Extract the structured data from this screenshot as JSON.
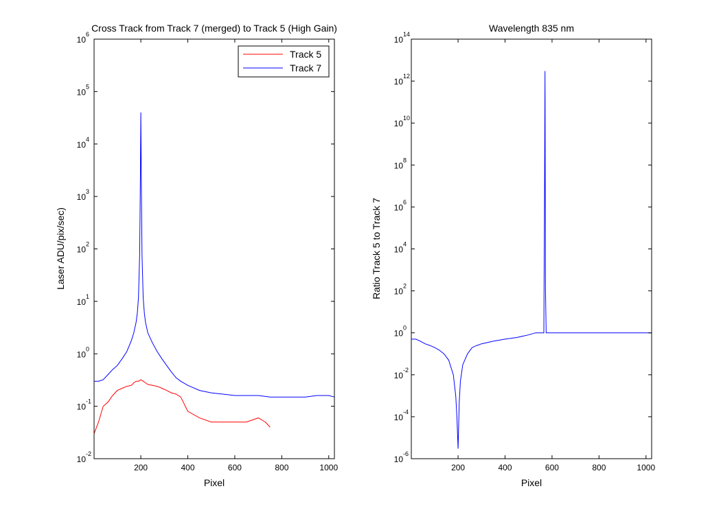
{
  "chart_data": [
    {
      "type": "line",
      "title": "Cross Track from Track 7 (merged) to Track 5 (High Gain)",
      "xlabel": "Pixel",
      "ylabel": "Laser ADU/pix/sec)",
      "xlim": [
        1,
        1024
      ],
      "ylim": [
        0.01,
        1000000
      ],
      "yscale": "log",
      "xticks": [
        200,
        400,
        600,
        800,
        1000
      ],
      "yticks": [
        {
          "base": "10",
          "exp": "-2",
          "value": 0.01
        },
        {
          "base": "10",
          "exp": "-1",
          "value": 0.1
        },
        {
          "base": "10",
          "exp": "0",
          "value": 1
        },
        {
          "base": "10",
          "exp": "1",
          "value": 10
        },
        {
          "base": "10",
          "exp": "2",
          "value": 100
        },
        {
          "base": "10",
          "exp": "3",
          "value": 1000
        },
        {
          "base": "10",
          "exp": "4",
          "value": 10000
        },
        {
          "base": "10",
          "exp": "5",
          "value": 100000
        },
        {
          "base": "10",
          "exp": "6",
          "value": 1000000
        }
      ],
      "legend": {
        "placement": "top-right"
      },
      "series": [
        {
          "name": "Track 5",
          "color": "#ff0000",
          "x": [
            1,
            20,
            40,
            60,
            80,
            100,
            120,
            140,
            160,
            170,
            180,
            190,
            200,
            210,
            220,
            230,
            250,
            270,
            290,
            310,
            330,
            350,
            370,
            400,
            450,
            500,
            550,
            600,
            650,
            700,
            730,
            750
          ],
          "y": [
            0.03,
            0.05,
            0.1,
            0.12,
            0.16,
            0.2,
            0.22,
            0.24,
            0.25,
            0.28,
            0.3,
            0.3,
            0.32,
            0.3,
            0.28,
            0.26,
            0.25,
            0.24,
            0.22,
            0.2,
            0.18,
            0.17,
            0.15,
            0.08,
            0.06,
            0.05,
            0.05,
            0.05,
            0.05,
            0.06,
            0.05,
            0.04
          ]
        },
        {
          "name": "Track 7",
          "color": "#0000ff",
          "x": [
            1,
            20,
            40,
            60,
            80,
            100,
            120,
            140,
            160,
            170,
            180,
            185,
            190,
            195,
            198,
            200,
            202,
            205,
            210,
            215,
            220,
            230,
            250,
            270,
            290,
            310,
            330,
            350,
            370,
            400,
            450,
            500,
            550,
            600,
            650,
            700,
            750,
            800,
            850,
            900,
            950,
            1000,
            1024
          ],
          "y": [
            0.3,
            0.3,
            0.32,
            0.4,
            0.5,
            0.6,
            0.8,
            1.1,
            1.8,
            2.5,
            4,
            6,
            12,
            80,
            2000,
            40000,
            2000,
            80,
            12,
            6,
            4,
            2.5,
            1.6,
            1.1,
            0.8,
            0.6,
            0.45,
            0.35,
            0.3,
            0.25,
            0.2,
            0.18,
            0.17,
            0.16,
            0.16,
            0.16,
            0.15,
            0.15,
            0.15,
            0.15,
            0.16,
            0.16,
            0.15
          ]
        }
      ]
    },
    {
      "type": "line",
      "title": "Wavelength 835 nm",
      "xlabel": "Pixel",
      "ylabel": "Ratio Track 5 to Track 7",
      "xlim": [
        1,
        1024
      ],
      "ylim": [
        1e-06,
        100000000000000.0
      ],
      "yscale": "log",
      "xticks": [
        200,
        400,
        600,
        800,
        1000
      ],
      "yticks": [
        {
          "base": "10",
          "exp": "-6",
          "value": 1e-06
        },
        {
          "base": "10",
          "exp": "-4",
          "value": 0.0001
        },
        {
          "base": "10",
          "exp": "-2",
          "value": 0.01
        },
        {
          "base": "10",
          "exp": "0",
          "value": 1
        },
        {
          "base": "10",
          "exp": "2",
          "value": 100
        },
        {
          "base": "10",
          "exp": "4",
          "value": 10000
        },
        {
          "base": "10",
          "exp": "6",
          "value": 1000000
        },
        {
          "base": "10",
          "exp": "8",
          "value": 100000000.0
        },
        {
          "base": "10",
          "exp": "10",
          "value": 10000000000.0
        },
        {
          "base": "10",
          "exp": "12",
          "value": 1000000000000.0
        },
        {
          "base": "10",
          "exp": "14",
          "value": 100000000000000.0
        }
      ],
      "series": [
        {
          "color": "#0000ff",
          "x": [
            1,
            20,
            40,
            60,
            80,
            100,
            120,
            140,
            160,
            180,
            190,
            195,
            200,
            205,
            210,
            220,
            240,
            260,
            280,
            300,
            350,
            400,
            450,
            500,
            530,
            550,
            560,
            565,
            568,
            570,
            572,
            575,
            580,
            600,
            650,
            700,
            750,
            800,
            850,
            900,
            950,
            1000,
            1024
          ],
          "y": [
            0.5,
            0.5,
            0.4,
            0.3,
            0.25,
            0.2,
            0.15,
            0.1,
            0.05,
            0.01,
            0.001,
            0.0001,
            3e-06,
            0.0005,
            0.005,
            0.03,
            0.1,
            0.2,
            0.25,
            0.3,
            0.4,
            0.5,
            0.6,
            0.8,
            1,
            1,
            1,
            1,
            2000000,
            3000000000000.0,
            100,
            1,
            1,
            1,
            1,
            1,
            1,
            1,
            1,
            1,
            1,
            1,
            1
          ]
        }
      ]
    }
  ]
}
